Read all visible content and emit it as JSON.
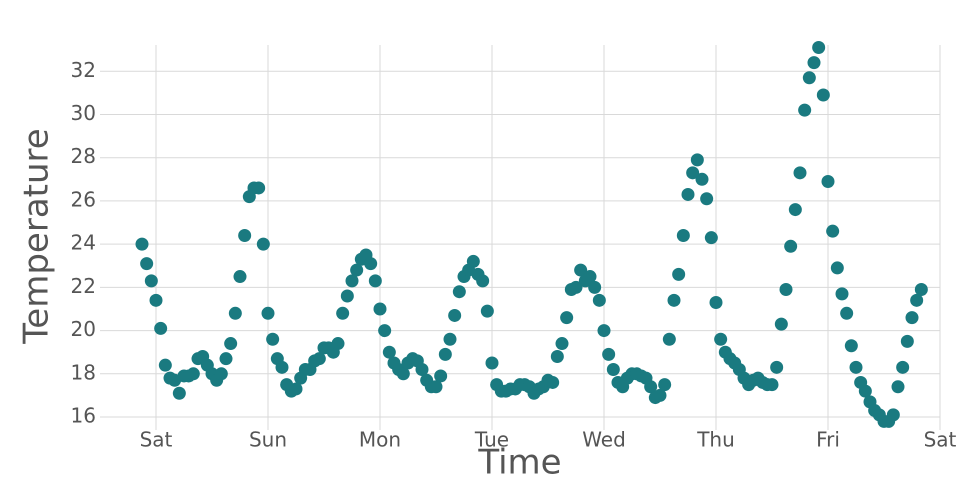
{
  "chart_data": {
    "type": "scatter",
    "x_label": "Time",
    "y_label": "Temperature",
    "xlim": [
      -12,
      168
    ],
    "xticks": [
      {
        "value": 0,
        "label": "Sat"
      },
      {
        "value": 24,
        "label": "Sun"
      },
      {
        "value": 48,
        "label": "Mon"
      },
      {
        "value": 72,
        "label": "Tue"
      },
      {
        "value": 96,
        "label": "Wed"
      },
      {
        "value": 120,
        "label": "Thu"
      },
      {
        "value": 144,
        "label": "Fri"
      },
      {
        "value": 168,
        "label": "Sat"
      }
    ],
    "ylim": [
      15.4,
      33.4
    ],
    "yticks": [
      16,
      18,
      20,
      22,
      24,
      26,
      28,
      30,
      32
    ],
    "grid": true,
    "series": [
      {
        "color": "#1a7a80",
        "x": [
          -3,
          -2,
          -1,
          0,
          1,
          2,
          3,
          4,
          5,
          6,
          7,
          8,
          9,
          10,
          11,
          12,
          13,
          14,
          15,
          16,
          17,
          18,
          19,
          20,
          21,
          22,
          23,
          24,
          25,
          26,
          27,
          28,
          29,
          30,
          31,
          32,
          33,
          34,
          35,
          36,
          37,
          38,
          39,
          40,
          41,
          42,
          43,
          44,
          45,
          46,
          47,
          48,
          49,
          50,
          51,
          52,
          53,
          54,
          55,
          56,
          57,
          58,
          59,
          60,
          61,
          62,
          63,
          64,
          65,
          66,
          67,
          68,
          69,
          70,
          71,
          72,
          73,
          74,
          75,
          76,
          77,
          78,
          79,
          80,
          81,
          82,
          83,
          84,
          85,
          86,
          87,
          88,
          89,
          90,
          91,
          92,
          93,
          94,
          95,
          96,
          97,
          98,
          99,
          100,
          101,
          102,
          103,
          104,
          105,
          106,
          107,
          108,
          109,
          110,
          111,
          112,
          113,
          114,
          115,
          116,
          117,
          118,
          119,
          120,
          121,
          122,
          123,
          124,
          125,
          126,
          127,
          128,
          129,
          130,
          131,
          132,
          133,
          134,
          135,
          136,
          137,
          138,
          139,
          140,
          141,
          142,
          143,
          144,
          145,
          146,
          147,
          148,
          149,
          150,
          151,
          152,
          153,
          154,
          155,
          156,
          157,
          158,
          159,
          160,
          161,
          162,
          163,
          164
        ],
        "values": [
          24.0,
          23.1,
          22.3,
          21.4,
          20.1,
          18.4,
          17.8,
          17.7,
          17.1,
          17.9,
          17.9,
          18.0,
          18.7,
          18.8,
          18.4,
          18.0,
          17.7,
          18.0,
          18.7,
          19.4,
          20.8,
          22.5,
          24.4,
          26.2,
          26.6,
          26.6,
          24.0,
          20.8,
          19.6,
          18.7,
          18.3,
          17.5,
          17.2,
          17.3,
          17.8,
          18.2,
          18.2,
          18.6,
          18.7,
          19.2,
          19.2,
          19.0,
          19.4,
          20.8,
          21.6,
          22.3,
          22.8,
          23.3,
          23.5,
          23.1,
          22.3,
          21.0,
          20.0,
          19.0,
          18.5,
          18.2,
          18.0,
          18.5,
          18.7,
          18.6,
          18.2,
          17.7,
          17.4,
          17.4,
          17.9,
          18.9,
          19.6,
          20.7,
          21.8,
          22.5,
          22.8,
          23.2,
          22.6,
          22.3,
          20.9,
          18.5,
          17.5,
          17.2,
          17.2,
          17.3,
          17.3,
          17.5,
          17.5,
          17.4,
          17.1,
          17.3,
          17.4,
          17.7,
          17.6,
          18.8,
          19.4,
          20.6,
          21.9,
          22.0,
          22.8,
          22.3,
          22.5,
          22.0,
          21.4,
          20.0,
          18.9,
          18.2,
          17.6,
          17.4,
          17.8,
          18.0,
          18.0,
          17.9,
          17.8,
          17.4,
          16.9,
          17.0,
          17.5,
          19.6,
          21.4,
          22.6,
          24.4,
          26.3,
          27.3,
          27.9,
          27.0,
          26.1,
          24.3,
          21.3,
          19.6,
          19.0,
          18.7,
          18.5,
          18.2,
          17.8,
          17.5,
          17.7,
          17.8,
          17.6,
          17.5,
          17.5,
          18.3,
          20.3,
          21.9,
          23.9,
          25.6,
          27.3,
          30.2,
          31.7,
          32.4,
          33.1,
          30.9,
          26.9,
          24.6,
          22.9,
          21.7,
          20.8,
          19.3,
          18.3,
          17.6,
          17.2,
          16.7,
          16.3,
          16.1,
          15.8,
          15.8,
          16.1,
          17.4,
          18.3,
          19.5,
          20.6,
          21.4,
          21.9
        ]
      }
    ]
  }
}
